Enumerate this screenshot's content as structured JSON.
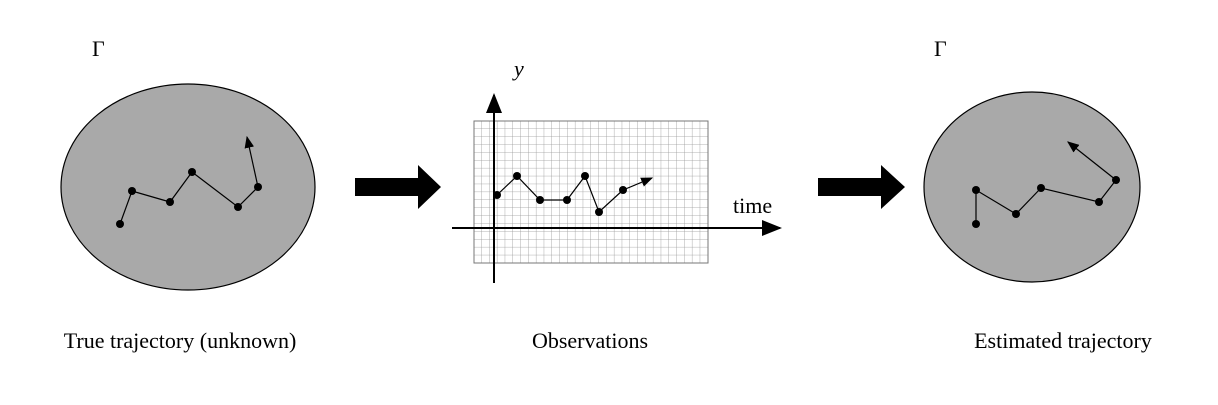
{
  "panels": [
    {
      "symbol": "Γ",
      "caption": "True trajectory (unknown)"
    },
    {
      "y_axis_label": "y",
      "x_axis_label": "time",
      "caption": "Observations"
    },
    {
      "symbol": "Γ",
      "caption": "Estimated trajectory"
    }
  ]
}
